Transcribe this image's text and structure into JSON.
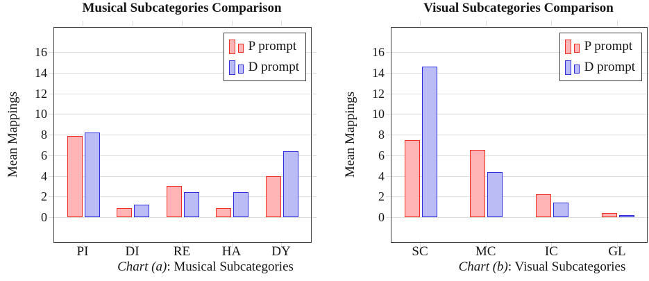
{
  "colors": {
    "p_fill": "#ffb5b5",
    "p_stroke": "#ee2e23",
    "d_fill": "#bbbbf6",
    "d_stroke": "#2c2cdc",
    "grid": "#dcdcdc",
    "frame": "#3f3f3f",
    "tick": "#d9d9d9",
    "text": "#151515"
  },
  "chart_data": [
    {
      "type": "bar",
      "title": "Musical Subcategories Comparison",
      "ylabel": "Mean Mappings",
      "caption_italic": "Chart (a)",
      "caption_rest": ": Musical Subcategories",
      "categories": [
        "PI",
        "DI",
        "RE",
        "HA",
        "DY"
      ],
      "series": [
        {
          "name": "P prompt",
          "values": [
            7.9,
            0.9,
            3.0,
            0.9,
            4.0
          ],
          "fill": "#ffb5b5",
          "stroke": "#ee2e23"
        },
        {
          "name": "D prompt",
          "values": [
            8.2,
            1.2,
            2.4,
            2.4,
            6.4
          ],
          "fill": "#bbbbf6",
          "stroke": "#2c2cdc"
        }
      ],
      "yticks": [
        0,
        2,
        4,
        6,
        8,
        10,
        12,
        14,
        16
      ],
      "ylim": [
        -2.42,
        18.37
      ],
      "grid": true,
      "legend_position": "top-right"
    },
    {
      "type": "bar",
      "title": "Visual Subcategories Comparison",
      "ylabel": "Mean Mappings",
      "caption_italic": "Chart (b)",
      "caption_rest": ": Visual Subcategories",
      "categories": [
        "SC",
        "MC",
        "IC",
        "GL"
      ],
      "series": [
        {
          "name": "P prompt",
          "values": [
            7.5,
            6.5,
            2.2,
            0.4
          ],
          "fill": "#ffb5b5",
          "stroke": "#ee2e23"
        },
        {
          "name": "D prompt",
          "values": [
            14.6,
            4.4,
            1.4,
            0.2
          ],
          "fill": "#bbbbf6",
          "stroke": "#2c2cdc"
        }
      ],
      "yticks": [
        0,
        2,
        4,
        6,
        8,
        10,
        12,
        14,
        16
      ],
      "ylim": [
        -2.42,
        18.37
      ],
      "grid": true,
      "legend_position": "top-right"
    }
  ]
}
